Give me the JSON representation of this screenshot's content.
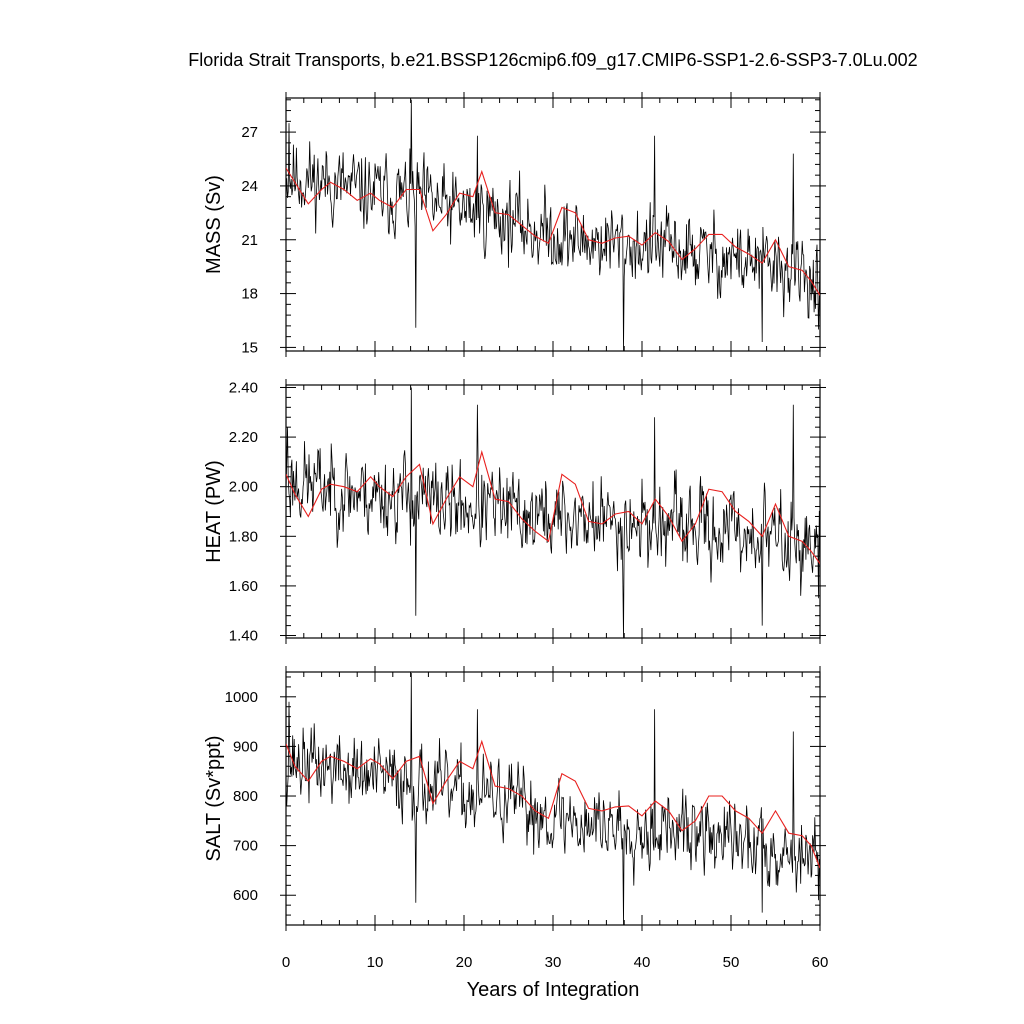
{
  "title": "Florida Strait Transports, b.e21.BSSP126cmip6.f09_g17.CMIP6-SSP1-2.6-SSP3-7.0Lu.002",
  "chart_data": {
    "type": "line",
    "xlabel": "Years of Integration",
    "xlim": [
      0,
      60
    ],
    "x_ticks": [
      "0",
      "10",
      "20",
      "30",
      "40",
      "50",
      "60"
    ],
    "grid": false,
    "colors": {
      "raw": "#000000",
      "smooth": "#e8201e"
    },
    "panels": [
      {
        "ylabel": "MASS (Sv)",
        "ylim": [
          14.8,
          28.9
        ],
        "y_ticks": [
          "15",
          "18",
          "21",
          "24",
          "27"
        ],
        "y_tick_values": [
          15,
          18,
          21,
          24,
          27
        ],
        "raw": {
          "base": [
            24.6,
            24.2,
            23.6,
            23.4,
            22.7,
            22.5,
            21.6,
            21.0,
            20.8,
            20.6,
            20.2,
            19.9,
            19.4,
            18.8
          ],
          "amp": 1.55,
          "seed": 11,
          "spikes": [
            [
              0.3,
              27.5
            ],
            [
              14.1,
              28.8
            ],
            [
              14.6,
              16.1
            ],
            [
              21.5,
              26.8
            ],
            [
              37.9,
              14.8
            ],
            [
              41.4,
              26.8
            ],
            [
              53.5,
              15.3
            ],
            [
              57.0,
              25.8
            ],
            [
              59.8,
              16.0
            ]
          ]
        },
        "smooth": {
          "x": [
            0,
            1,
            2.5,
            4,
            5,
            6.5,
            8,
            9.5,
            10.5,
            12,
            13.5,
            15,
            16.5,
            18,
            19.5,
            21,
            22,
            23.5,
            25,
            26.5,
            28,
            29.5,
            31,
            32.5,
            34,
            35.5,
            37,
            38.5,
            40,
            41.5,
            43,
            44.5,
            46,
            47.5,
            49,
            50.5,
            52,
            53.5,
            55,
            56.5,
            58,
            59,
            60
          ],
          "y": [
            25.0,
            24.2,
            23.0,
            23.8,
            24.2,
            23.8,
            23.2,
            23.6,
            23.2,
            22.8,
            23.8,
            23.8,
            21.5,
            22.4,
            23.6,
            23.4,
            24.8,
            22.5,
            22.4,
            21.8,
            21.2,
            20.8,
            22.8,
            22.5,
            21.0,
            20.8,
            21.1,
            21.2,
            20.7,
            21.4,
            20.9,
            19.9,
            20.5,
            21.3,
            21.3,
            20.6,
            20.2,
            19.7,
            21.0,
            19.5,
            19.3,
            18.7,
            17.9
          ]
        }
      },
      {
        "ylabel": "HEAT (PW)",
        "ylim": [
          1.39,
          2.41
        ],
        "y_ticks": [
          "1.40",
          "1.60",
          "1.80",
          "2.00",
          "2.20",
          "2.40"
        ],
        "y_tick_values": [
          1.4,
          1.6,
          1.8,
          2.0,
          2.2,
          2.4
        ],
        "raw": {
          "base": [
            2.03,
            2.0,
            1.97,
            1.96,
            1.93,
            1.91,
            1.88,
            1.87,
            1.86,
            1.85,
            1.83,
            1.82,
            1.8,
            1.76
          ],
          "amp": 0.12,
          "seed": 23,
          "spikes": [
            [
              0.2,
              2.24
            ],
            [
              14.1,
              2.4
            ],
            [
              14.6,
              1.48
            ],
            [
              21.5,
              2.33
            ],
            [
              37.9,
              1.39
            ],
            [
              41.4,
              2.28
            ],
            [
              53.5,
              1.44
            ],
            [
              57.0,
              2.33
            ],
            [
              59.8,
              1.55
            ]
          ]
        },
        "smooth": {
          "x": [
            0,
            1,
            2.5,
            4,
            5,
            6.5,
            8,
            9.5,
            10.5,
            12,
            13.5,
            15,
            16.5,
            18,
            19.5,
            21,
            22,
            23.5,
            25,
            26.5,
            28,
            29.5,
            31,
            32.5,
            34,
            35.5,
            37,
            38.5,
            40,
            41.5,
            43,
            44.5,
            46,
            47.5,
            49,
            50.5,
            52,
            53.5,
            55,
            56.5,
            58,
            59,
            60
          ],
          "y": [
            2.05,
            1.97,
            1.88,
            1.99,
            2.01,
            2.0,
            1.98,
            2.04,
            2.0,
            1.96,
            2.04,
            2.09,
            1.85,
            1.95,
            2.04,
            2.0,
            2.14,
            1.95,
            1.94,
            1.87,
            1.82,
            1.78,
            2.05,
            2.01,
            1.86,
            1.85,
            1.89,
            1.9,
            1.85,
            1.95,
            1.88,
            1.78,
            1.85,
            1.99,
            1.98,
            1.9,
            1.86,
            1.8,
            1.93,
            1.8,
            1.78,
            1.74,
            1.69
          ]
        }
      },
      {
        "ylabel": "SALT (Sv*ppt)",
        "ylim": [
          540,
          1050
        ],
        "y_ticks": [
          "600",
          "700",
          "800",
          "900",
          "1000"
        ],
        "y_tick_values": [
          600,
          700,
          800,
          900,
          1000
        ],
        "raw": {
          "base": [
            872,
            858,
            838,
            830,
            805,
            798,
            770,
            750,
            742,
            735,
            722,
            710,
            695,
            670
          ],
          "amp": 55,
          "seed": 37,
          "spikes": [
            [
              0.3,
              990
            ],
            [
              14.1,
              1048
            ],
            [
              14.6,
              585
            ],
            [
              21.5,
              975
            ],
            [
              37.9,
              540
            ],
            [
              41.4,
              975
            ],
            [
              53.5,
              565
            ],
            [
              57.0,
              930
            ],
            [
              59.8,
              590
            ]
          ]
        },
        "smooth": {
          "x": [
            0,
            1,
            2.5,
            4,
            5,
            6.5,
            8,
            9.5,
            10.5,
            12,
            13.5,
            15,
            16.5,
            18,
            19.5,
            21,
            22,
            23.5,
            25,
            26.5,
            28,
            29.5,
            31,
            32.5,
            34,
            35.5,
            37,
            38.5,
            40,
            41.5,
            43,
            44.5,
            46,
            47.5,
            49,
            50.5,
            52,
            53.5,
            55,
            56.5,
            58,
            59,
            60
          ],
          "y": [
            905,
            860,
            830,
            870,
            880,
            870,
            855,
            875,
            865,
            835,
            870,
            880,
            785,
            830,
            870,
            855,
            910,
            820,
            815,
            800,
            770,
            755,
            845,
            830,
            775,
            770,
            778,
            780,
            760,
            790,
            770,
            730,
            750,
            800,
            800,
            770,
            755,
            725,
            770,
            725,
            720,
            700,
            655
          ]
        }
      }
    ]
  }
}
